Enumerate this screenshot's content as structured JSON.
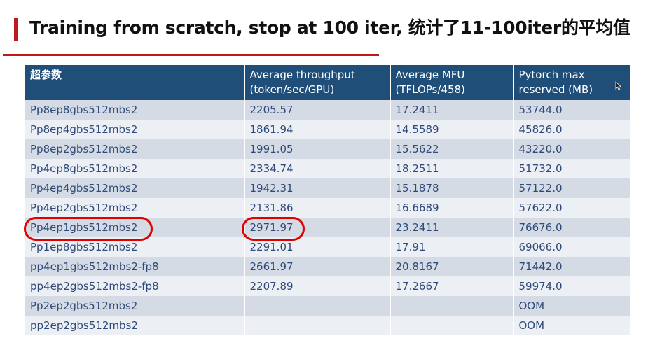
{
  "title": "Training from scratch, stop at 100 iter, 统计了11-100iter的平均值",
  "table": {
    "headers": [
      [
        "超参数",
        ""
      ],
      [
        "Average throughput",
        "(token/sec/GPU)"
      ],
      [
        "Average MFU",
        "(TFLOPs/458)"
      ],
      [
        "Pytorch max",
        "reserved (MB)"
      ]
    ],
    "rows": [
      [
        "Pp8ep8gbs512mbs2",
        "2205.57",
        "17.2411",
        "53744.0"
      ],
      [
        "Pp8ep4gbs512mbs2",
        "1861.94",
        "14.5589",
        "45826.0"
      ],
      [
        "Pp8ep2gbs512mbs2",
        "1991.05",
        "15.5622",
        "43220.0"
      ],
      [
        "Pp4ep8gbs512mbs2",
        "2334.74",
        "18.2511",
        "51732.0"
      ],
      [
        "Pp4ep4gbs512mbs2",
        "1942.31",
        "15.1878",
        "57122.0"
      ],
      [
        "Pp4ep2gbs512mbs2",
        "2131.86",
        "16.6689",
        "57622.0"
      ],
      [
        "Pp4ep1gbs512mbs2",
        "2971.97",
        "23.2411",
        "76676.0"
      ],
      [
        "Pp1ep8gbs512mbs2",
        "2291.01",
        "17.91",
        "69066.0"
      ],
      [
        "pp4ep1gbs512mbs2-fp8",
        "2661.97",
        "20.8167",
        "71442.0"
      ],
      [
        "pp4ep2gbs512mbs2-fp8",
        "2207.89",
        "17.2667",
        "59974.0"
      ],
      [
        "Pp2ep2gbs512mbs2",
        "",
        "",
        "OOM"
      ],
      [
        "pp2ep2gbs512mbs2",
        "",
        "",
        "OOM"
      ]
    ],
    "highlighted_row": 6
  },
  "colors": {
    "accent_red": "#c0181f",
    "header_bg": "#1f4e79",
    "row_odd": "#d5dbe4",
    "row_even": "#eceff4",
    "highlight_circle": "#e00000"
  },
  "icons": [
    "mouse-cursor-icon"
  ]
}
